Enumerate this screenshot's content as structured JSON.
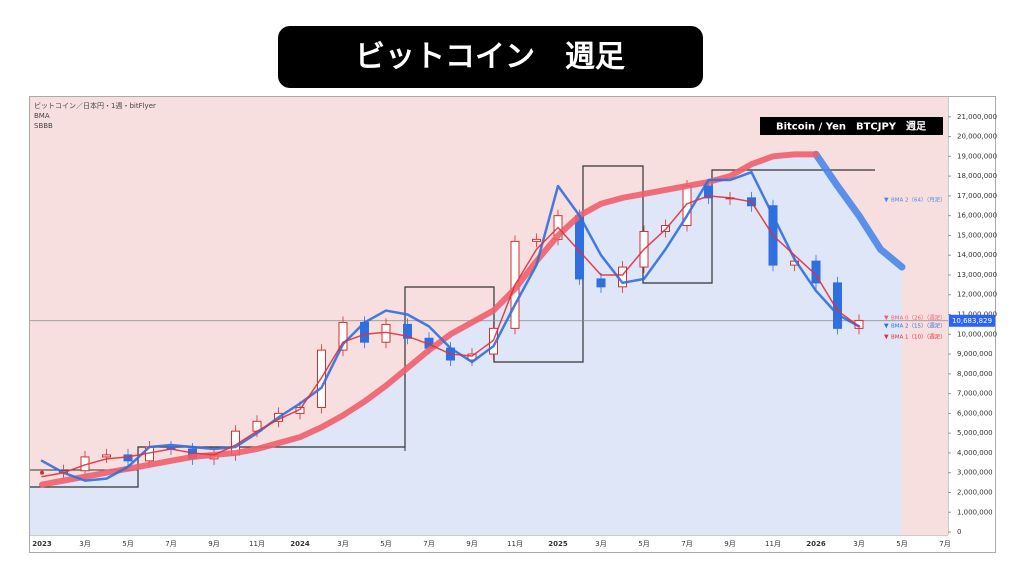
{
  "page_title": "ビットコイン　週足",
  "chart_data": {
    "type": "line",
    "title": "Bitcoin / Yen　BTCJPY　週足",
    "subtitle": "ビットコイン／日本円・1週・bitFlyer",
    "indicators": [
      "BMA",
      "SBBB"
    ],
    "categories": [
      "2023",
      null,
      "3月",
      null,
      "5月",
      null,
      "7月",
      null,
      "9月",
      null,
      "11月",
      null,
      "2024",
      null,
      "3月",
      null,
      "5月",
      null,
      "7月",
      null,
      "9月",
      null,
      "11月",
      null,
      "2025",
      null,
      "3月",
      null,
      "5月",
      null,
      "7月",
      null,
      "9月",
      null,
      "11月",
      null,
      "2026",
      null,
      "3月",
      null,
      "5月",
      null,
      "7月"
    ],
    "price": [
      3000000.0,
      3100000.0,
      3800000.0,
      3900000.0,
      3600000.0,
      4300000.0,
      4200000.0,
      3700000.0,
      3900000.0,
      5100000.0,
      5600000.0,
      6000000.0,
      6300000.0,
      9200000.0,
      10600000.0,
      9600000.0,
      10500000.0,
      9800000.0,
      9300000.0,
      8700000.0,
      9000000.0,
      10300000.0,
      14700000.0,
      14800000.0,
      16000000.0,
      12800000.0,
      12400000.0,
      13400000.0,
      15200000.0,
      15500000.0,
      17500000.0,
      16900000.0,
      16900000.0,
      16500000.0,
      13500000.0,
      13700000.0,
      12600000.0,
      10300000.0,
      10700000.0,
      null,
      null,
      null,
      null
    ],
    "series": [
      {
        "name": "BMA 2（64）（月足）",
        "color": "#4a86e8",
        "width": 7,
        "values": [
          null,
          null,
          null,
          null,
          null,
          null,
          null,
          null,
          null,
          null,
          null,
          null,
          null,
          null,
          null,
          null,
          null,
          null,
          null,
          null,
          null,
          null,
          null,
          null,
          null,
          null,
          null,
          null,
          null,
          null,
          null,
          null,
          null,
          null,
          null,
          null,
          19100000.0,
          17500000.0,
          16000000.0,
          14300000.0,
          13400000.0,
          null,
          null
        ]
      },
      {
        "name": "BMA 0（26）（週足）",
        "color": "#ef5f6a",
        "width": 6,
        "values": [
          2400000.0,
          2600000.0,
          2800000.0,
          3000000.0,
          3200000.0,
          3400000.0,
          3600000.0,
          3800000.0,
          3900000.0,
          4000000.0,
          4200000.0,
          4500000.0,
          4800000.0,
          5300000.0,
          5900000.0,
          6600000.0,
          7400000.0,
          8300000.0,
          9200000.0,
          10000000.0,
          10600000.0,
          11200000.0,
          12300000.0,
          13700000.0,
          15000000.0,
          16000000.0,
          16600000.0,
          16900000.0,
          17100000.0,
          17300000.0,
          17500000.0,
          17700000.0,
          18000000.0,
          18600000.0,
          19000000.0,
          19100000.0,
          19100000.0,
          null,
          null,
          null,
          null,
          null,
          null
        ]
      },
      {
        "name": "BMA 2（15）（週足）",
        "color": "#2f6fe0",
        "width": 2.5,
        "values": [
          3600000.0,
          3000000.0,
          2600000.0,
          2700000.0,
          3300000.0,
          4300000.0,
          4400000.0,
          4300000.0,
          4200000.0,
          4300000.0,
          5000000.0,
          5800000.0,
          6500000.0,
          7300000.0,
          9500000.0,
          10600000.0,
          11200000.0,
          11000000.0,
          10400000.0,
          9300000.0,
          8600000.0,
          9400000.0,
          11500000.0,
          13500000.0,
          17500000.0,
          16000000.0,
          14000000.0,
          12600000.0,
          12800000.0,
          14300000.0,
          16000000.0,
          17800000.0,
          17800000.0,
          18200000.0,
          16000000.0,
          13800000.0,
          12200000.0,
          11000000.0,
          10400000.0,
          null,
          null,
          null,
          null
        ]
      },
      {
        "name": "BMA 1（10）（週足）",
        "color": "#e0303a",
        "width": 1.5,
        "values": [
          2800000.0,
          3000000.0,
          3400000.0,
          3700000.0,
          3800000.0,
          4000000.0,
          4200000.0,
          4000000.0,
          3900000.0,
          4400000.0,
          5100000.0,
          5700000.0,
          6200000.0,
          7800000.0,
          9600000.0,
          10000000.0,
          10100000.0,
          9900000.0,
          9500000.0,
          9000000.0,
          8900000.0,
          9700000.0,
          12500000.0,
          14300000.0,
          15400000.0,
          14200000.0,
          13000000.0,
          13000000.0,
          14300000.0,
          15300000.0,
          16600000.0,
          17000000.0,
          16900000.0,
          16700000.0,
          15000000.0,
          14000000.0,
          13000000.0,
          11200000.0,
          10400000.0,
          null,
          null,
          null,
          null
        ]
      }
    ],
    "current_price": {
      "value": 10683829,
      "label": "10,683,829"
    },
    "ylim": [
      -150000,
      22000000
    ],
    "yticks": [
      {
        "value": 0,
        "label": "0"
      },
      {
        "value": 1000000,
        "label": "1,000,000"
      },
      {
        "value": 2000000,
        "label": "2,000,000"
      },
      {
        "value": 3000000,
        "label": "3,000,000"
      },
      {
        "value": 4000000,
        "label": "4,000,000"
      },
      {
        "value": 5000000,
        "label": "5,000,000"
      },
      {
        "value": 6000000,
        "label": "6,000,000"
      },
      {
        "value": 7000000,
        "label": "7,000,000"
      },
      {
        "value": 8000000,
        "label": "8,000,000"
      },
      {
        "value": 9000000,
        "label": "9,000,000"
      },
      {
        "value": 10000000,
        "label": "10,000,000"
      },
      {
        "value": 11000000,
        "label": "11,000,000"
      },
      {
        "value": 12000000,
        "label": "12,000,000"
      },
      {
        "value": 13000000,
        "label": "13,000,000"
      },
      {
        "value": 14000000,
        "label": "14,000,000"
      },
      {
        "value": 15000000,
        "label": "15,000,000"
      },
      {
        "value": 16000000,
        "label": "16,000,000"
      },
      {
        "value": 17000000,
        "label": "17,000,000"
      },
      {
        "value": 18000000,
        "label": "18,000,000"
      },
      {
        "value": 19000000,
        "label": "19,000,000"
      },
      {
        "value": 20000000,
        "label": "20,000,000"
      },
      {
        "value": 21000000,
        "label": "21,000,000"
      }
    ],
    "up_color": "#d32f2f",
    "down_color": "#2f6fe0",
    "bull_zone_color": "#f8dfdf",
    "bear_zone_color": "#dfe6f7"
  }
}
